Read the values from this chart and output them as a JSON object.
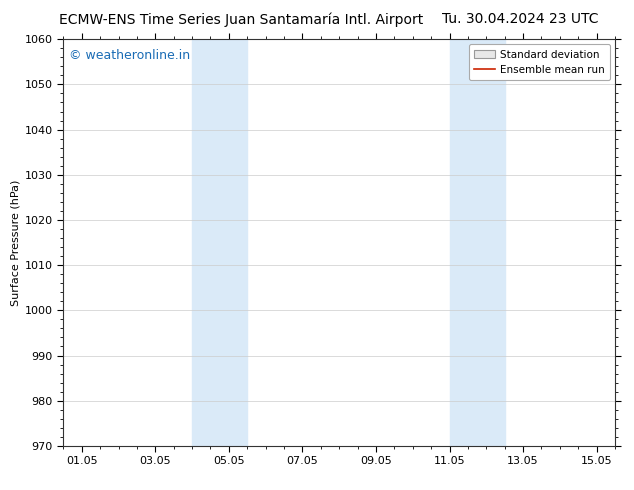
{
  "title_left": "ECMW-ENS Time Series Juan Santamaría Intl. Airport",
  "title_right": "Tu. 30.04.2024 23 UTC",
  "ylabel": "Surface Pressure (hPa)",
  "ylim": [
    970,
    1060
  ],
  "yticks": [
    970,
    980,
    990,
    1000,
    1010,
    1020,
    1030,
    1040,
    1050,
    1060
  ],
  "x_tick_labels": [
    "01.05",
    "03.05",
    "05.05",
    "07.05",
    "09.05",
    "11.05",
    "13.05",
    "15.05"
  ],
  "x_tick_positions": [
    1,
    3,
    5,
    7,
    9,
    11,
    13,
    15
  ],
  "xlim": [
    0.5,
    15.5
  ],
  "shaded_regions": [
    {
      "x_start": 4.0,
      "x_end": 5.5
    },
    {
      "x_start": 11.0,
      "x_end": 12.5
    }
  ],
  "shaded_color": "#daeaf8",
  "watermark_text": "© weatheronline.in",
  "watermark_color": "#1a6cb5",
  "watermark_fontsize": 9,
  "legend_std_label": "Standard deviation",
  "legend_mean_label": "Ensemble mean run",
  "legend_mean_color": "#cc2200",
  "bg_color": "#ffffff",
  "grid_color": "#cccccc",
  "title_fontsize": 10,
  "axis_label_fontsize": 8,
  "tick_fontsize": 8
}
